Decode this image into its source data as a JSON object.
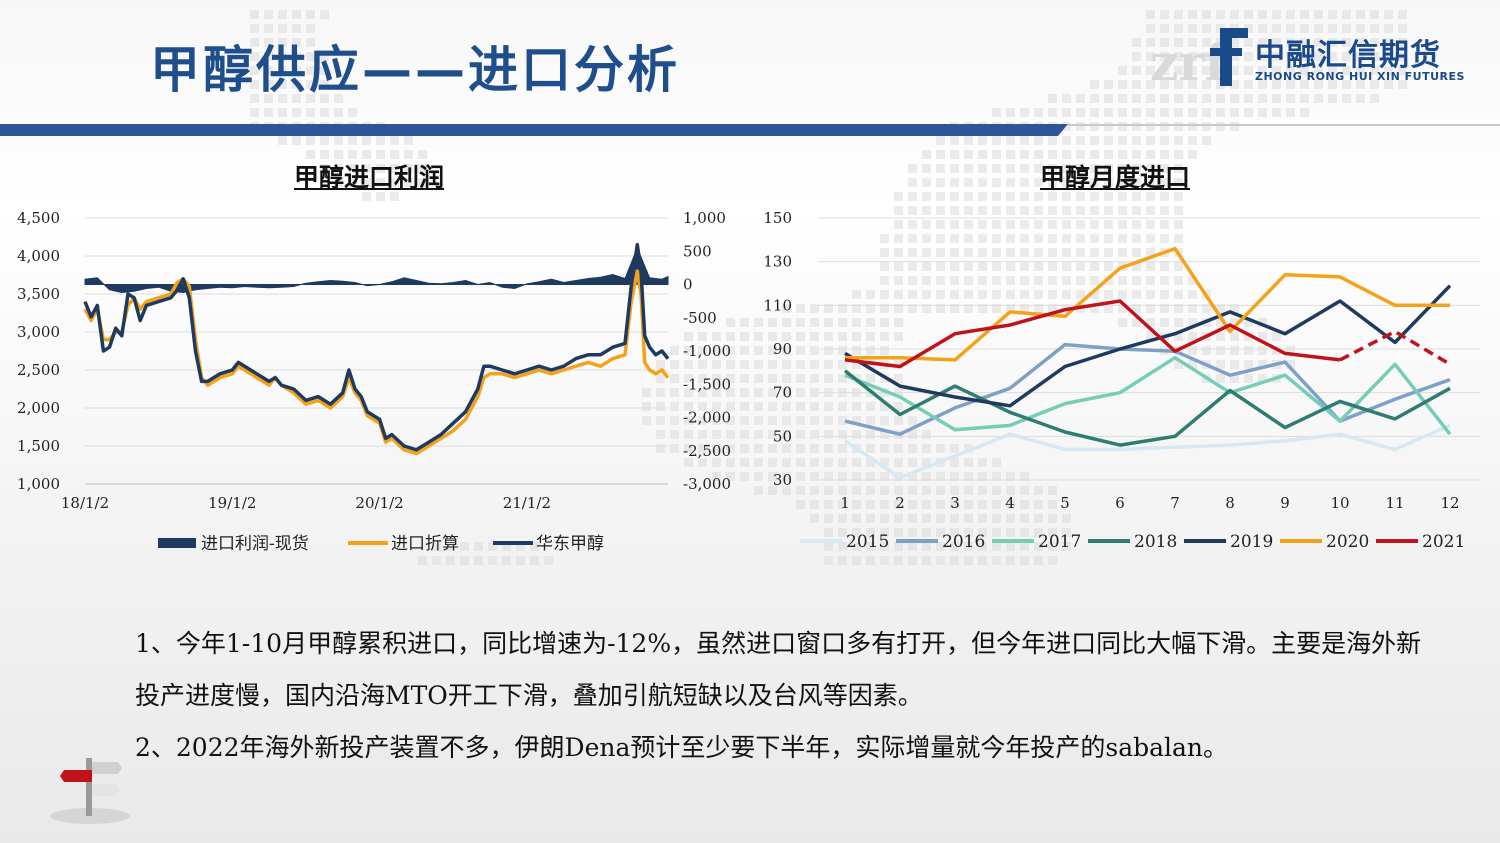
{
  "slide_title": "甲醇供应——进口分析",
  "brand": {
    "name_cn": "中融汇信期货",
    "name_en": "ZHONG RONG HUI XIN FUTURES",
    "mark": "zrf"
  },
  "paragraphs": [
    "1、今年1-10月甲醇累积进口，同比增速为-12%，虽然进口窗口多有打开，但今年进口同比大幅下滑。主要是海外新投产进度慢，国内沿海MTO开工下滑，叠加引航短缺以及台风等因素。",
    "2、2022年海外新投产装置不多，伊朗Dena预计至少要下半年，实际增量就今年投产的sabalan。"
  ],
  "colors": {
    "title": "#1f4e8c",
    "band": "#2e5597",
    "navy": "#1f3a5f",
    "orange": "#f5a21b"
  },
  "chart_data": [
    {
      "type": "line",
      "title": "甲醇进口利润",
      "x_ticks": [
        "18/1/2",
        "19/1/2",
        "20/1/2",
        "21/1/2"
      ],
      "left_axis": {
        "ticks": [
          "4,500",
          "4,000",
          "3,500",
          "3,000",
          "2,500",
          "2,000",
          "1,500",
          "1,000"
        ],
        "ylim": [
          1000,
          4500
        ]
      },
      "right_axis": {
        "ticks": [
          "1,000",
          "500",
          "0",
          "-500",
          "-1,000",
          "-1,500",
          "-2,000",
          "-2,500",
          "-3,000"
        ],
        "ylim": [
          -3000,
          1000
        ]
      },
      "x_range_months": [
        0,
        47.5
      ],
      "series": [
        {
          "name": "进口利润-现货",
          "axis": "right",
          "style": "area",
          "color": "#1f3a5f",
          "points": [
            [
              0,
              80
            ],
            [
              1,
              100
            ],
            [
              2,
              -80
            ],
            [
              3,
              -120
            ],
            [
              4,
              -100
            ],
            [
              5,
              -60
            ],
            [
              6,
              -40
            ],
            [
              7,
              -100
            ],
            [
              8,
              -120
            ],
            [
              9,
              -80
            ],
            [
              10,
              -60
            ],
            [
              11,
              -40
            ],
            [
              12,
              -50
            ],
            [
              13,
              -30
            ],
            [
              14,
              -40
            ],
            [
              15,
              -50
            ],
            [
              16,
              -40
            ],
            [
              17,
              -30
            ],
            [
              18,
              20
            ],
            [
              19,
              40
            ],
            [
              20,
              60
            ],
            [
              21,
              50
            ],
            [
              22,
              30
            ],
            [
              23,
              -20
            ],
            [
              24,
              0
            ],
            [
              25,
              40
            ],
            [
              26,
              100
            ],
            [
              27,
              60
            ],
            [
              28,
              20
            ],
            [
              29,
              10
            ],
            [
              30,
              30
            ],
            [
              31,
              60
            ],
            [
              32,
              0
            ],
            [
              33,
              30
            ],
            [
              34,
              -40
            ],
            [
              35,
              -60
            ],
            [
              36,
              10
            ],
            [
              37,
              40
            ],
            [
              38,
              80
            ],
            [
              39,
              30
            ],
            [
              40,
              60
            ],
            [
              41,
              90
            ],
            [
              42,
              110
            ],
            [
              43,
              150
            ],
            [
              44,
              90
            ],
            [
              45,
              550
            ],
            [
              46,
              100
            ],
            [
              47,
              80
            ],
            [
              47.5,
              120
            ]
          ]
        },
        {
          "name": "进口折算",
          "axis": "left",
          "style": "line",
          "color": "#f5a21b",
          "points": [
            [
              0,
              3300
            ],
            [
              0.5,
              3150
            ],
            [
              1,
              3300
            ],
            [
              1.5,
              2900
            ],
            [
              2,
              2900
            ],
            [
              2.5,
              3000
            ],
            [
              3,
              3000
            ],
            [
              3.5,
              3350
            ],
            [
              4,
              3450
            ],
            [
              4.5,
              3300
            ],
            [
              5,
              3400
            ],
            [
              6,
              3450
            ],
            [
              7,
              3500
            ],
            [
              7.5,
              3650
            ],
            [
              8,
              3700
            ],
            [
              8.5,
              3600
            ],
            [
              9,
              2900
            ],
            [
              9.5,
              2400
            ],
            [
              10,
              2300
            ],
            [
              11,
              2400
            ],
            [
              12,
              2450
            ],
            [
              12.5,
              2550
            ],
            [
              13,
              2500
            ],
            [
              14,
              2400
            ],
            [
              15,
              2300
            ],
            [
              15.5,
              2400
            ],
            [
              16,
              2300
            ],
            [
              17,
              2200
            ],
            [
              18,
              2050
            ],
            [
              19,
              2100
            ],
            [
              20,
              2000
            ],
            [
              21,
              2150
            ],
            [
              21.5,
              2400
            ],
            [
              22,
              2200
            ],
            [
              22.5,
              2100
            ],
            [
              23,
              1900
            ],
            [
              24,
              1800
            ],
            [
              24.5,
              1550
            ],
            [
              25,
              1600
            ],
            [
              26,
              1450
            ],
            [
              27,
              1400
            ],
            [
              28,
              1500
            ],
            [
              29,
              1600
            ],
            [
              30,
              1700
            ],
            [
              31,
              1850
            ],
            [
              32,
              2150
            ],
            [
              32.5,
              2400
            ],
            [
              33,
              2450
            ],
            [
              34,
              2450
            ],
            [
              35,
              2400
            ],
            [
              36,
              2450
            ],
            [
              37,
              2500
            ],
            [
              38,
              2450
            ],
            [
              39,
              2500
            ],
            [
              40,
              2550
            ],
            [
              41,
              2600
            ],
            [
              42,
              2550
            ],
            [
              43,
              2650
            ],
            [
              44,
              2700
            ],
            [
              44.5,
              3400
            ],
            [
              45,
              3800
            ],
            [
              45.3,
              3500
            ],
            [
              45.6,
              2600
            ],
            [
              46,
              2500
            ],
            [
              46.5,
              2450
            ],
            [
              47,
              2500
            ],
            [
              47.5,
              2400
            ]
          ]
        },
        {
          "name": "华东甲醇",
          "axis": "left",
          "style": "line",
          "color": "#1f3a5f",
          "points": [
            [
              0,
              3400
            ],
            [
              0.5,
              3200
            ],
            [
              1,
              3350
            ],
            [
              1.5,
              2750
            ],
            [
              2,
              2800
            ],
            [
              2.5,
              3050
            ],
            [
              3,
              2950
            ],
            [
              3.5,
              3500
            ],
            [
              4,
              3450
            ],
            [
              4.5,
              3150
            ],
            [
              5,
              3350
            ],
            [
              6,
              3400
            ],
            [
              7,
              3450
            ],
            [
              7.5,
              3550
            ],
            [
              8,
              3700
            ],
            [
              8.5,
              3450
            ],
            [
              9,
              2750
            ],
            [
              9.5,
              2350
            ],
            [
              10,
              2350
            ],
            [
              11,
              2450
            ],
            [
              12,
              2500
            ],
            [
              12.5,
              2600
            ],
            [
              13,
              2550
            ],
            [
              14,
              2450
            ],
            [
              15,
              2350
            ],
            [
              15.5,
              2400
            ],
            [
              16,
              2300
            ],
            [
              17,
              2250
            ],
            [
              18,
              2100
            ],
            [
              19,
              2150
            ],
            [
              20,
              2050
            ],
            [
              21,
              2200
            ],
            [
              21.5,
              2500
            ],
            [
              22,
              2250
            ],
            [
              22.5,
              2150
            ],
            [
              23,
              1950
            ],
            [
              24,
              1850
            ],
            [
              24.5,
              1600
            ],
            [
              25,
              1650
            ],
            [
              26,
              1500
            ],
            [
              27,
              1450
            ],
            [
              28,
              1550
            ],
            [
              29,
              1650
            ],
            [
              30,
              1800
            ],
            [
              31,
              1950
            ],
            [
              32,
              2250
            ],
            [
              32.5,
              2550
            ],
            [
              33,
              2550
            ],
            [
              34,
              2500
            ],
            [
              35,
              2450
            ],
            [
              36,
              2500
            ],
            [
              37,
              2550
            ],
            [
              38,
              2500
            ],
            [
              39,
              2550
            ],
            [
              40,
              2650
            ],
            [
              41,
              2700
            ],
            [
              42,
              2700
            ],
            [
              43,
              2800
            ],
            [
              44,
              2850
            ],
            [
              44.5,
              3600
            ],
            [
              45,
              4150
            ],
            [
              45.3,
              3800
            ],
            [
              45.6,
              2950
            ],
            [
              46,
              2800
            ],
            [
              46.5,
              2700
            ],
            [
              47,
              2750
            ],
            [
              47.5,
              2650
            ]
          ]
        }
      ],
      "legend": [
        "进口利润-现货",
        "进口折算",
        "华东甲醇"
      ]
    },
    {
      "type": "line",
      "title": "甲醇月度进口",
      "categories": [
        1,
        2,
        3,
        4,
        5,
        6,
        7,
        8,
        9,
        10,
        11,
        12
      ],
      "y_ticks": [
        150,
        130,
        110,
        90,
        70,
        50,
        30
      ],
      "ylim": [
        30,
        150
      ],
      "series": [
        {
          "name": "2015",
          "color": "#d6e9f2",
          "values": [
            48,
            31,
            41,
            51,
            44,
            44,
            45,
            46,
            48,
            51,
            44,
            55
          ]
        },
        {
          "name": "2016",
          "color": "#7ea0c6",
          "values": [
            57,
            51,
            63,
            72,
            92,
            90,
            89,
            78,
            84,
            57,
            67,
            76
          ]
        },
        {
          "name": "2017",
          "color": "#76cdb6",
          "values": [
            78,
            68,
            53,
            55,
            65,
            70,
            86,
            70,
            78,
            57,
            83,
            51
          ]
        },
        {
          "name": "2018",
          "color": "#2f7c70",
          "values": [
            80,
            60,
            73,
            61,
            52,
            46,
            50,
            71,
            54,
            66,
            58,
            72
          ]
        },
        {
          "name": "2019",
          "color": "#1f3a5f",
          "values": [
            88,
            73,
            68,
            64,
            82,
            90,
            97,
            107,
            97,
            112,
            93,
            119
          ]
        },
        {
          "name": "2020",
          "color": "#f5a21b",
          "values": [
            86,
            86,
            85,
            107,
            105,
            127,
            136,
            98,
            124,
            123,
            110,
            110
          ]
        },
        {
          "name": "2021",
          "color": "#c0121b",
          "values": [
            85,
            82,
            97,
            101,
            108,
            112,
            89,
            101,
            88,
            85,
            98,
            83
          ],
          "dashed_from_index": 9
        }
      ],
      "legend": [
        "2015",
        "2016",
        "2017",
        "2018",
        "2019",
        "2020",
        "2021"
      ]
    }
  ]
}
